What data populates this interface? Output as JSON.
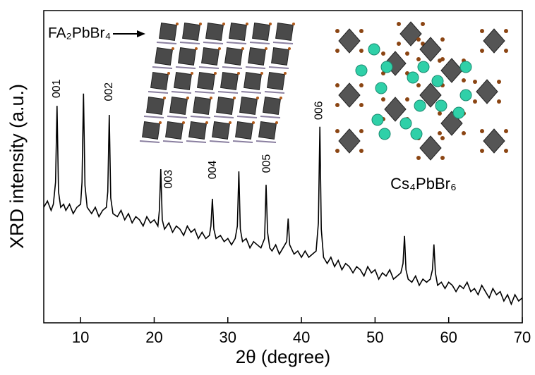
{
  "chart_data": {
    "type": "line",
    "xlabel": "2θ (degree)",
    "ylabel": "XRD intensity (a.u.)",
    "xlim": [
      5,
      70
    ],
    "xticks": [
      10,
      20,
      30,
      40,
      50,
      60,
      70
    ],
    "ylim": [
      0,
      100
    ],
    "color": "#000000",
    "x": [
      5,
      5.5,
      6,
      6.3,
      6.6,
      6.8,
      7.0,
      7.3,
      7.7,
      8,
      8.5,
      9,
      9.5,
      10,
      10.2,
      10.4,
      10.6,
      10.9,
      11.5,
      12,
      12.5,
      13,
      13.5,
      13.7,
      13.9,
      14.1,
      14.4,
      15,
      15.5,
      16,
      16.5,
      17,
      17.5,
      18,
      18.5,
      19,
      19.5,
      20,
      20.5,
      20.7,
      20.9,
      21.1,
      21.4,
      22,
      22.5,
      23,
      23.5,
      24,
      24.5,
      25,
      25.5,
      26,
      26.5,
      27,
      27.5,
      27.7,
      27.9,
      28.1,
      28.4,
      29,
      29.5,
      30,
      30.5,
      31,
      31.3,
      31.5,
      31.7,
      32,
      32.5,
      33,
      33.5,
      34,
      34.5,
      35,
      35.2,
      35.4,
      35.7,
      36,
      36.5,
      37,
      37.5,
      38,
      38.2,
      38.4,
      39,
      39.5,
      40,
      40.5,
      41,
      41.5,
      42,
      42.3,
      42.5,
      42.7,
      43,
      43.5,
      44,
      44.5,
      45,
      45.5,
      46,
      46.5,
      47,
      47.5,
      48,
      48.5,
      49,
      49.5,
      50,
      50.5,
      51,
      51.5,
      52,
      52.5,
      53,
      53.5,
      53.8,
      54,
      54.2,
      54.5,
      55,
      55.5,
      56,
      56.5,
      57,
      57.5,
      57.8,
      58,
      58.2,
      58.5,
      59,
      59.5,
      60,
      60.5,
      61,
      61.5,
      62,
      62.5,
      63,
      63.5,
      64,
      64.5,
      65,
      65.5,
      66,
      66.5,
      67,
      67.5,
      68,
      68.5,
      69,
      69.5,
      70
    ],
    "values": [
      37,
      39,
      36,
      38,
      45,
      69.5,
      42,
      37,
      38,
      36,
      38,
      35,
      37,
      38,
      45,
      73.4,
      44,
      37,
      35,
      37,
      34,
      36,
      37,
      42,
      66.6,
      40,
      35,
      34,
      36,
      33,
      35,
      32,
      34,
      33,
      31,
      34,
      32,
      33,
      31,
      36,
      49.2,
      33,
      30,
      32,
      29,
      31,
      30,
      28,
      31,
      29,
      30,
      27,
      29,
      27,
      28,
      31,
      39.7,
      30,
      27,
      28,
      26,
      27,
      25,
      27,
      31,
      48.5,
      30,
      26,
      27,
      24,
      26,
      25,
      24,
      27,
      44.2,
      29,
      24,
      23,
      25,
      22,
      24,
      26,
      33.4,
      25,
      22,
      23,
      21,
      23,
      21,
      22,
      23,
      32,
      62.8,
      30,
      21,
      19,
      21,
      18,
      20,
      17,
      19,
      18,
      16,
      18,
      17,
      15,
      18,
      16,
      17,
      14,
      16,
      15,
      17,
      14,
      15,
      16,
      19,
      27.8,
      17,
      14,
      13,
      15,
      12,
      14,
      13,
      14,
      17,
      25.1,
      16,
      12,
      13,
      11,
      13,
      12,
      10,
      12,
      11,
      13,
      10,
      11,
      9,
      12,
      10,
      8,
      11,
      9,
      10,
      7,
      9,
      6,
      9,
      7,
      8
    ],
    "annotations": [
      {
        "text": "001",
        "x": 6.8,
        "y": 75
      },
      {
        "text": "002",
        "x": 13.9,
        "y": 74
      },
      {
        "text": "003",
        "x": 22,
        "y": 46
      },
      {
        "text": "004",
        "x": 28,
        "y": 49
      },
      {
        "text": "005",
        "x": 35.3,
        "y": 51
      },
      {
        "text": "006",
        "x": 42.4,
        "y": 68
      }
    ],
    "insets": [
      {
        "label": "FA₂PbBr₄"
      },
      {
        "label": "Cs₄PbBr₆"
      }
    ]
  }
}
